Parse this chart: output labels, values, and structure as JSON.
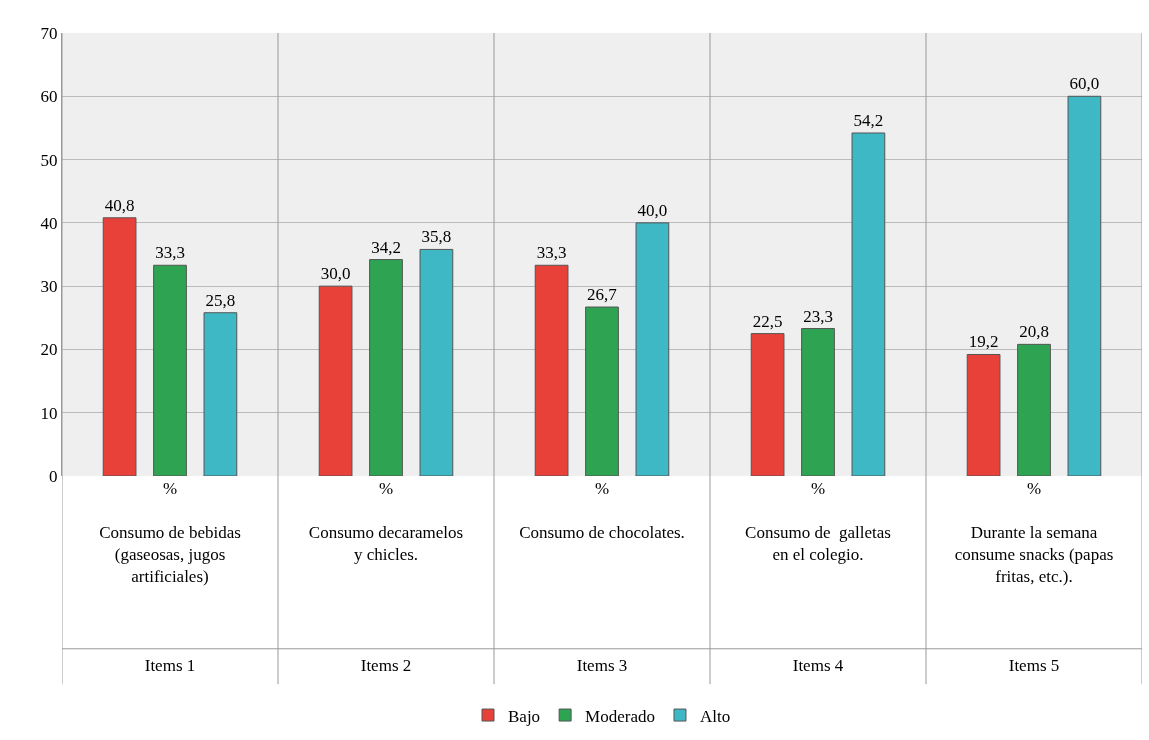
{
  "chart_data": {
    "type": "bar",
    "categories": [
      "%\n\nConsumo de bebidas\n(gaseosas, jugos\nartificiales)\n\n\n\nItems 1",
      "%\n\nConsumo decaramelos\ny chicles.\n\n\n\n\nItems 2",
      "%\n\nConsumo de chocolates.\n\n\n\n\n\nItems 3",
      "%\n\nConsumo de  galletas\nen el colegio.\n\n\n\n\nItems 4",
      "%\n\nDurante la semana\nconsume snacks (papas\nfritas, etc.).\n\n\n\nItems 5"
    ],
    "series": [
      {
        "name": "Bajo",
        "color": "#e8413a",
        "values": [
          40.8,
          30.0,
          33.3,
          22.5,
          19.2
        ],
        "value_labels": [
          "40,8",
          "30,0",
          "33,3",
          "22,5",
          "19,2"
        ]
      },
      {
        "name": "Moderado",
        "color": "#2ea452",
        "values": [
          33.3,
          34.2,
          26.7,
          23.3,
          20.8
        ],
        "value_labels": [
          "33,3",
          "34,2",
          "26,7",
          "23,3",
          "20,8"
        ]
      },
      {
        "name": "Alto",
        "color": "#3fb8c6",
        "values": [
          25.8,
          35.8,
          40.0,
          54.2,
          60.0
        ],
        "value_labels": [
          "25,8",
          "35,8",
          "40,0",
          "54,2",
          "60,0"
        ]
      }
    ],
    "ylim": [
      0,
      70
    ],
    "yticks": [
      0,
      10,
      20,
      30,
      40,
      50,
      60,
      70
    ],
    "grid": true,
    "legend": "bottom"
  }
}
